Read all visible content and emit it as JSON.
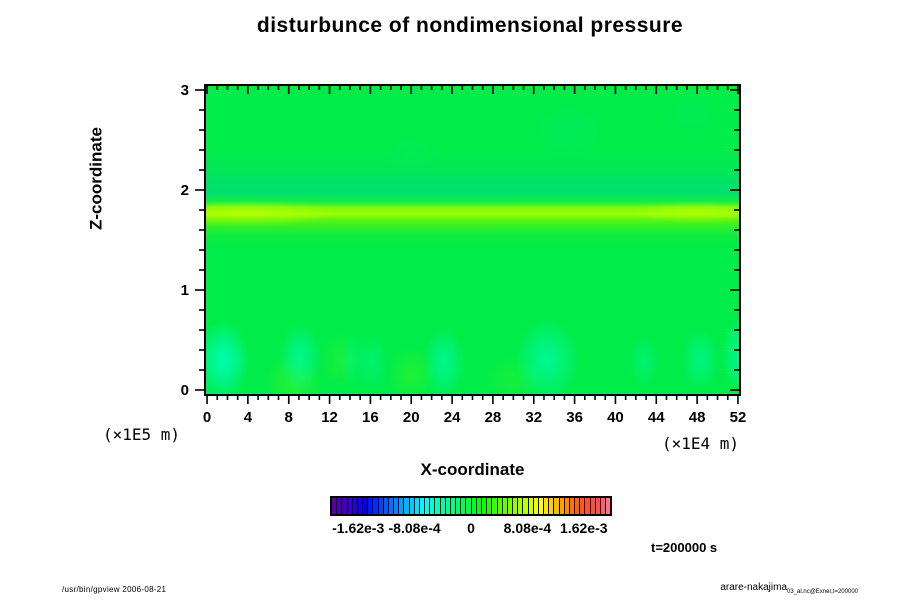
{
  "figure": {
    "title": "disturbunce of nondimensional pressure",
    "xlabel": "X-coordinate",
    "ylabel": "Z-coordinate",
    "y_scale_label": "(×1E5 m)",
    "x_scale_label": "(×1E4 m)",
    "time_annotation": "t=200000 s"
  },
  "footer": {
    "left": "/usr/bin/gpview 2006-08-21",
    "right_main": "arare-nakajima",
    "right_sub": "03_al.nc@Exner,t=200000"
  },
  "colors": {
    "background_field": "#00ec49",
    "positive_band_peak": "#a3ff00",
    "negative_band_teal": "#00d494",
    "negative_blob_cyan": "#00ffc8",
    "frame": "#000000"
  },
  "chart_data": {
    "type": "heatmap",
    "title": "disturbunce of nondimensional pressure",
    "xlabel": "X-coordinate",
    "ylabel": "Z-coordinate",
    "x_unit": "(×1E4 m)",
    "y_unit": "(×1E5 m)",
    "xlim": [
      -0.2,
      52.2
    ],
    "ylim": [
      -0.05,
      3.05
    ],
    "x_ticks": [
      0,
      4,
      8,
      12,
      16,
      20,
      24,
      28,
      32,
      36,
      40,
      44,
      48,
      52
    ],
    "x_minor_tick_step": 1,
    "y_ticks": [
      0,
      1,
      2,
      3
    ],
    "y_minor_tick_step": 0.2,
    "time": "t=200000 s",
    "grid_on": false,
    "colorbar": {
      "position": "bottom",
      "tick_labels": [
        "-1.62e-3",
        "-8.08e-4",
        "0",
        "8.08e-4",
        "1.62e-3"
      ],
      "tick_values": [
        -0.00162,
        -0.000808,
        0,
        0.000808,
        0.00162
      ],
      "label_positions_pct": [
        10,
        30,
        50,
        70,
        90
      ],
      "value_range": [
        -0.00202,
        0.00202
      ],
      "n_segments": 54,
      "style": "discrete rainbow: dark violet → blue → cyan → green (0) → yellow → orange → red → salmon"
    },
    "grid_estimate": {
      "comment": "values ×1e-3, estimated from colors; rows ordered z bottom→top",
      "x": [
        0,
        4,
        8,
        12,
        16,
        20,
        24,
        28,
        32,
        36,
        40,
        44,
        48,
        52
      ],
      "z": [
        0,
        0.5,
        1.0,
        1.5,
        1.75,
        2.0,
        2.5,
        3.0
      ],
      "values_e3": [
        [
          0.1,
          0.15,
          0.05,
          0.1,
          0.15,
          0.2,
          0.1,
          0.05,
          0.1,
          0.05,
          0.05,
          0.1,
          0.05,
          0.0
        ],
        [
          -0.35,
          -0.05,
          -0.25,
          -0.05,
          -0.15,
          -0.05,
          -0.2,
          -0.1,
          -0.05,
          -0.3,
          -0.05,
          -0.1,
          -0.2,
          -0.3
        ],
        [
          0.05,
          0.05,
          0.05,
          0.05,
          0.05,
          0.05,
          0.05,
          0.05,
          0.05,
          0.05,
          0.05,
          0.05,
          0.05,
          0.05
        ],
        [
          0.15,
          0.15,
          0.15,
          0.1,
          0.1,
          0.1,
          0.1,
          0.1,
          0.1,
          0.1,
          0.1,
          0.1,
          0.15,
          0.15
        ],
        [
          1.0,
          0.95,
          0.9,
          0.85,
          0.8,
          0.8,
          0.75,
          0.75,
          0.7,
          0.7,
          0.7,
          0.75,
          0.85,
          0.8
        ],
        [
          -0.2,
          -0.2,
          -0.15,
          -0.15,
          -0.2,
          -0.25,
          -0.2,
          -0.15,
          -0.2,
          -0.15,
          -0.1,
          -0.1,
          -0.15,
          -0.1
        ],
        [
          0.05,
          0.05,
          0.05,
          0.05,
          0.05,
          0.05,
          0.05,
          0.05,
          0.05,
          0.05,
          0.05,
          0.05,
          0.05,
          0.05
        ],
        [
          0.05,
          0.05,
          0.05,
          0.05,
          0.05,
          0.05,
          0.05,
          0.05,
          0.05,
          0.05,
          0.05,
          0.05,
          0.05,
          0.05
        ]
      ]
    },
    "features": {
      "positive_band": {
        "z_center": 1.77,
        "z_halfwidth": 0.18,
        "peak_value_e3": 1.0,
        "extent": "full x range, brightest at left and near x=48"
      },
      "negative_teal_band": {
        "z_center": 2.0,
        "z_halfwidth": 0.15,
        "value_e3": -0.2
      },
      "negative_blobs": [
        {
          "x": 1.6,
          "z": 0.3,
          "rx": 2.6,
          "ry": 0.4,
          "opacity": 0.85
        },
        {
          "x": 9.1,
          "z": 0.32,
          "rx": 2.1,
          "ry": 0.36,
          "opacity": 0.55
        },
        {
          "x": 14.3,
          "z": 0.3,
          "rx": 1.4,
          "ry": 0.28,
          "opacity": 0.25
        },
        {
          "x": 16.2,
          "z": 0.28,
          "rx": 1.6,
          "ry": 0.3,
          "opacity": 0.3
        },
        {
          "x": 23.2,
          "z": 0.28,
          "rx": 2.1,
          "ry": 0.36,
          "opacity": 0.55
        },
        {
          "x": 33.3,
          "z": 0.3,
          "rx": 3.2,
          "ry": 0.42,
          "opacity": 0.6
        },
        {
          "x": 42.8,
          "z": 0.28,
          "rx": 1.6,
          "ry": 0.28,
          "opacity": 0.3
        },
        {
          "x": 48.3,
          "z": 0.3,
          "rx": 1.9,
          "ry": 0.32,
          "opacity": 0.45
        },
        {
          "x": 52.3,
          "z": 0.35,
          "rx": 2.0,
          "ry": 0.38,
          "opacity": 0.6
        }
      ]
    }
  }
}
